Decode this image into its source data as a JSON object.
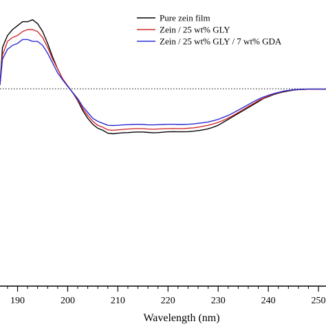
{
  "chart_data": {
    "type": "line",
    "title": "",
    "xlabel": "Wavelength (nm)",
    "ylabel": "",
    "xlim": [
      186.5,
      251.5
    ],
    "ylim": [
      -1.0,
      0.45
    ],
    "x_ticks": [
      190,
      200,
      210,
      220,
      230,
      240,
      250
    ],
    "zero_reference_line": "dotted",
    "legend_position": "top-right",
    "series": [
      {
        "name": "Pure zein film",
        "color": "#000000",
        "x": [
          186.5,
          187,
          188,
          189,
          190,
          191,
          192,
          193,
          194,
          195,
          196,
          197,
          198,
          199,
          200,
          201,
          202,
          203,
          204,
          205,
          206,
          207,
          208,
          209,
          210,
          211,
          212,
          213,
          214,
          215,
          216,
          217,
          218,
          219,
          220,
          221,
          222,
          223,
          224,
          225,
          226,
          227,
          228,
          229,
          230,
          231,
          232,
          233,
          234,
          235,
          236,
          237,
          238,
          239,
          240,
          241,
          242,
          243,
          244,
          245,
          246,
          247,
          248,
          249,
          250,
          251,
          251.5
        ],
        "y": [
          0.02,
          0.21,
          0.27,
          0.3,
          0.32,
          0.34,
          0.34,
          0.35,
          0.33,
          0.29,
          0.23,
          0.16,
          0.1,
          0.05,
          0.015,
          -0.02,
          -0.06,
          -0.11,
          -0.15,
          -0.18,
          -0.2,
          -0.21,
          -0.225,
          -0.228,
          -0.225,
          -0.223,
          -0.222,
          -0.22,
          -0.219,
          -0.219,
          -0.221,
          -0.223,
          -0.222,
          -0.22,
          -0.218,
          -0.217,
          -0.218,
          -0.218,
          -0.217,
          -0.215,
          -0.212,
          -0.208,
          -0.203,
          -0.195,
          -0.185,
          -0.17,
          -0.155,
          -0.14,
          -0.125,
          -0.11,
          -0.095,
          -0.08,
          -0.065,
          -0.05,
          -0.04,
          -0.03,
          -0.022,
          -0.016,
          -0.011,
          -0.007,
          -0.004,
          -0.003,
          -0.002,
          -0.002,
          -0.002,
          -0.002,
          -0.002
        ]
      },
      {
        "name": "Zein / 25 wt% GLY",
        "color": "#d42a2a",
        "x": [
          186.5,
          187,
          188,
          189,
          190,
          191,
          192,
          193,
          194,
          195,
          196,
          197,
          198,
          199,
          200,
          201,
          202,
          203,
          204,
          205,
          206,
          207,
          208,
          209,
          210,
          211,
          212,
          213,
          214,
          215,
          216,
          217,
          218,
          219,
          220,
          221,
          222,
          223,
          224,
          225,
          226,
          227,
          228,
          229,
          230,
          231,
          232,
          233,
          234,
          235,
          236,
          237,
          238,
          239,
          240,
          241,
          242,
          243,
          244,
          245,
          246,
          247,
          248,
          249,
          250,
          251,
          251.5
        ],
        "y": [
          0.02,
          0.17,
          0.24,
          0.26,
          0.27,
          0.29,
          0.3,
          0.3,
          0.29,
          0.26,
          0.21,
          0.15,
          0.1,
          0.05,
          0.015,
          -0.02,
          -0.055,
          -0.1,
          -0.135,
          -0.165,
          -0.185,
          -0.195,
          -0.208,
          -0.21,
          -0.208,
          -0.206,
          -0.204,
          -0.203,
          -0.202,
          -0.202,
          -0.204,
          -0.205,
          -0.204,
          -0.203,
          -0.202,
          -0.201,
          -0.202,
          -0.202,
          -0.2,
          -0.198,
          -0.195,
          -0.19,
          -0.185,
          -0.178,
          -0.17,
          -0.16,
          -0.148,
          -0.135,
          -0.12,
          -0.105,
          -0.09,
          -0.075,
          -0.06,
          -0.048,
          -0.037,
          -0.028,
          -0.02,
          -0.014,
          -0.009,
          -0.006,
          -0.004,
          -0.003,
          -0.002,
          -0.002,
          -0.002,
          -0.002,
          -0.002
        ]
      },
      {
        "name": "Zein / 25 wt% GLY / 7 wt% GDA",
        "color": "#2a2ad4",
        "x": [
          186.5,
          187,
          188,
          189,
          190,
          191,
          192,
          193,
          194,
          195,
          196,
          197,
          198,
          199,
          200,
          201,
          202,
          203,
          204,
          205,
          206,
          207,
          208,
          209,
          210,
          211,
          212,
          213,
          214,
          215,
          216,
          217,
          218,
          219,
          220,
          221,
          222,
          223,
          224,
          225,
          226,
          227,
          228,
          229,
          230,
          231,
          232,
          233,
          234,
          235,
          236,
          237,
          238,
          239,
          240,
          241,
          242,
          243,
          244,
          245,
          246,
          247,
          248,
          249,
          250,
          251,
          251.5
        ],
        "y": [
          0.02,
          0.15,
          0.2,
          0.22,
          0.23,
          0.25,
          0.25,
          0.24,
          0.24,
          0.22,
          0.18,
          0.13,
          0.08,
          0.045,
          0.012,
          -0.018,
          -0.05,
          -0.09,
          -0.12,
          -0.15,
          -0.165,
          -0.175,
          -0.185,
          -0.186,
          -0.185,
          -0.183,
          -0.182,
          -0.181,
          -0.18,
          -0.181,
          -0.183,
          -0.183,
          -0.182,
          -0.181,
          -0.18,
          -0.18,
          -0.181,
          -0.181,
          -0.18,
          -0.178,
          -0.175,
          -0.172,
          -0.168,
          -0.162,
          -0.155,
          -0.145,
          -0.135,
          -0.122,
          -0.108,
          -0.094,
          -0.08,
          -0.066,
          -0.053,
          -0.042,
          -0.033,
          -0.025,
          -0.018,
          -0.012,
          -0.008,
          -0.005,
          -0.003,
          -0.002,
          -0.001,
          -0.001,
          -0.001,
          -0.001,
          -0.001
        ]
      }
    ]
  }
}
